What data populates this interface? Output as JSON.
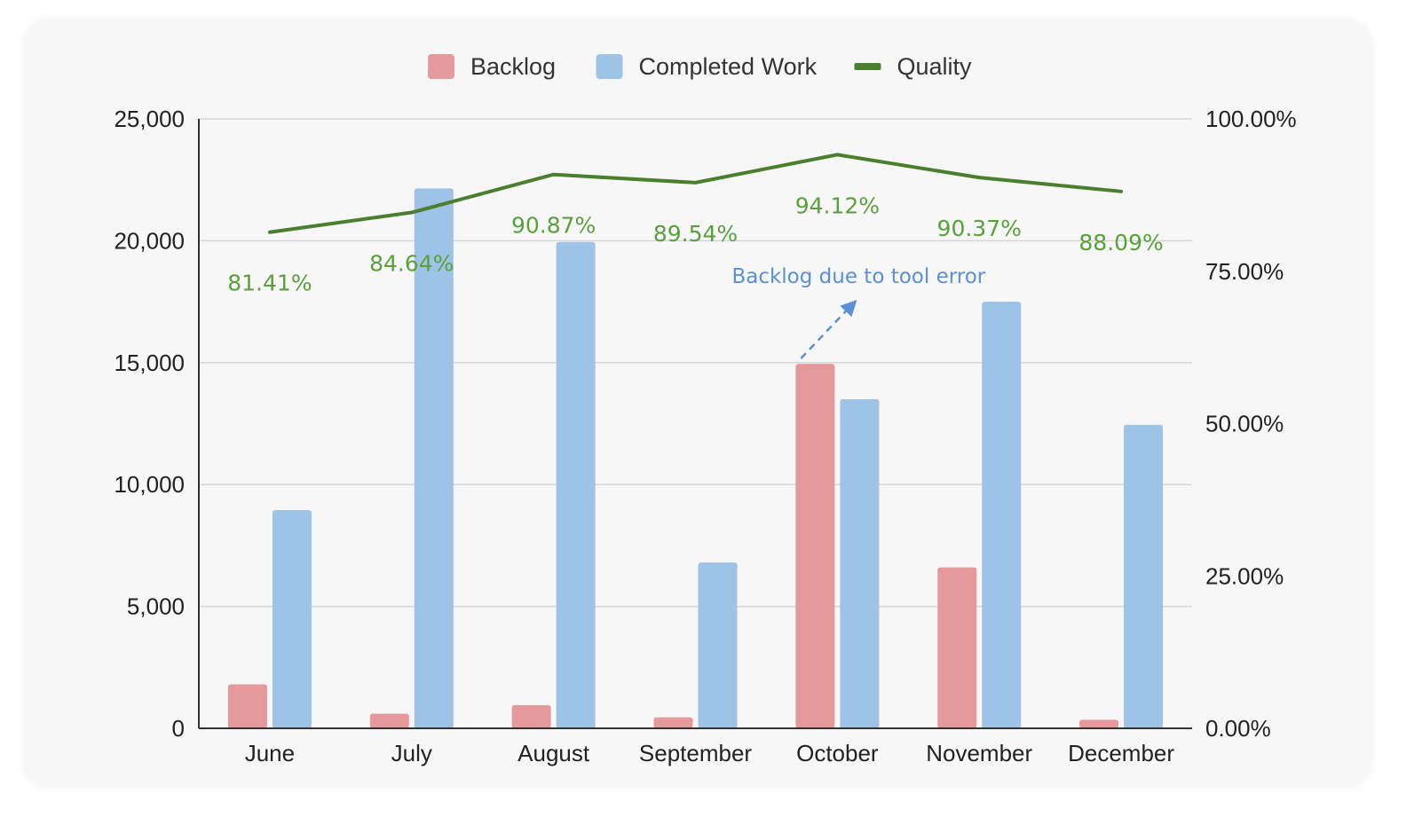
{
  "chart_data": {
    "type": "bar",
    "categories": [
      "June",
      "July",
      "August",
      "September",
      "October",
      "November",
      "December"
    ],
    "series": [
      {
        "name": "Backlog",
        "type": "bar",
        "axis": "left",
        "color": "#e6999b",
        "values": [
          1800,
          600,
          950,
          450,
          14950,
          6600,
          350
        ]
      },
      {
        "name": "Completed Work",
        "type": "bar",
        "axis": "left",
        "color": "#9dc3e6",
        "values": [
          8950,
          22150,
          19950,
          6800,
          13500,
          17500,
          12450
        ]
      },
      {
        "name": "Quality",
        "type": "line",
        "axis": "right",
        "color": "#4a7f2e",
        "values": [
          81.41,
          84.64,
          90.87,
          89.54,
          94.12,
          90.37,
          88.09
        ],
        "labels": [
          "81.41%",
          "84.64%",
          "90.87%",
          "89.54%",
          "94.12%",
          "90.37%",
          "88.09%"
        ],
        "label_color": "#5aa03c"
      }
    ],
    "y_left": {
      "ylim": [
        0,
        25000
      ],
      "ticks": [
        0,
        5000,
        10000,
        15000,
        20000,
        25000
      ],
      "tick_labels": [
        "0",
        "5,000",
        "10,000",
        "15,000",
        "20,000",
        "25,000"
      ]
    },
    "y_right": {
      "ylim": [
        0,
        100
      ],
      "ticks": [
        0,
        25,
        50,
        75,
        100
      ],
      "tick_labels": [
        "0.00%",
        "25.00%",
        "50.00%",
        "75.00%",
        "100.00%"
      ]
    },
    "legend": {
      "position": "top-center",
      "entries": [
        {
          "label": "Backlog",
          "color": "#e6999b",
          "shape": "square"
        },
        {
          "label": "Completed Work",
          "color": "#9dc3e6",
          "shape": "square"
        },
        {
          "label": "Quality",
          "color": "#4a7f2e",
          "shape": "line"
        }
      ]
    },
    "annotation": {
      "text": "Backlog due to tool error",
      "color": "#5b8fd6",
      "category": "October"
    },
    "grid": true,
    "title": "",
    "xlabel": "",
    "ylabel": ""
  }
}
